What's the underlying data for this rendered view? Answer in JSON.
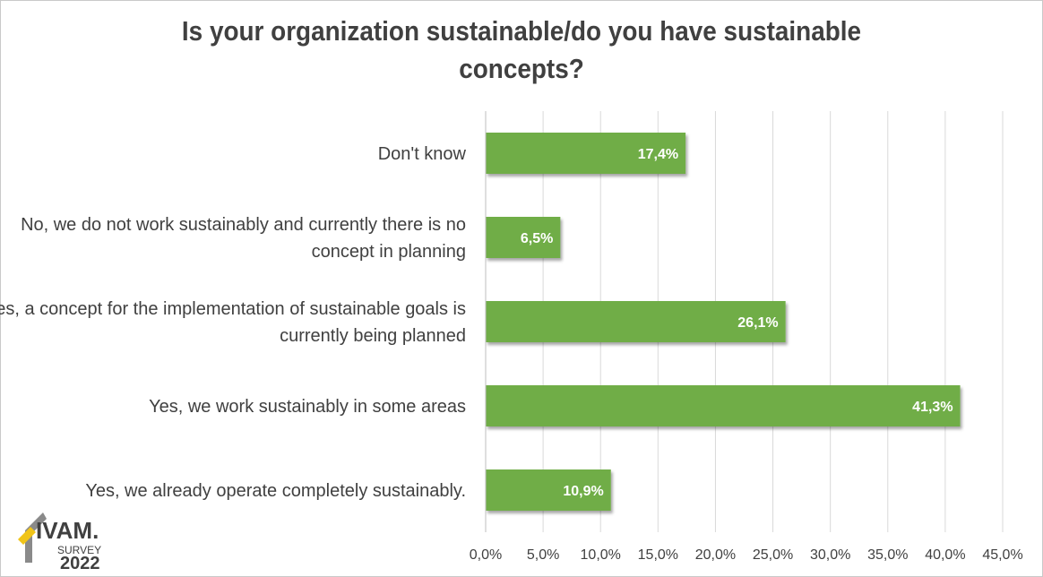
{
  "chart_data": {
    "type": "bar",
    "orientation": "horizontal",
    "title": [
      "Is your organization sustainable/do you have sustainable",
      "concepts?"
    ],
    "categories": [
      [
        "Don't know"
      ],
      [
        "No, we do not work sustainably and currently there is no",
        "concept in planning"
      ],
      [
        "Yes, a concept for the implementation of sustainable goals is",
        "currently being planned"
      ],
      [
        "Yes, we work sustainably in some areas"
      ],
      [
        "Yes, we already operate completely sustainably."
      ]
    ],
    "values": [
      17.4,
      6.5,
      26.1,
      41.3,
      10.9
    ],
    "data_labels": [
      "17,4%",
      "6,5%",
      "26,1%",
      "41,3%",
      "10,9%"
    ],
    "xlim": [
      0,
      45
    ],
    "x_ticks": [
      0,
      5,
      10,
      15,
      20,
      25,
      30,
      35,
      40,
      45
    ],
    "x_tick_labels": [
      "0,0%",
      "5,0%",
      "10,0%",
      "15,0%",
      "20,0%",
      "25,0%",
      "30,0%",
      "35,0%",
      "40,0%",
      "45,0%"
    ],
    "grid": true,
    "legend": false,
    "colors": {
      "bar": "#70ad47",
      "grid": "#d9d9d9",
      "text": "#404040",
      "label": "#ffffff"
    }
  },
  "logo": {
    "brand": "IVAM.",
    "line1": "SURVEY",
    "line2": "2022"
  }
}
